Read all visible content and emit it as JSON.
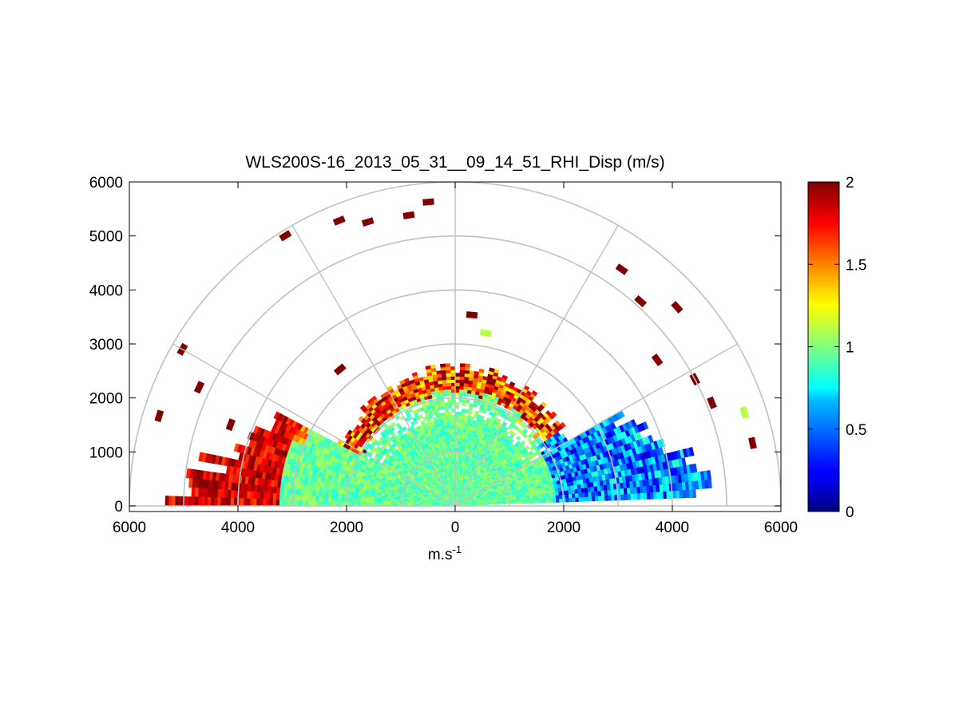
{
  "chart_data": {
    "type": "heatmap",
    "subtype": "polar RHI scan (half-disk)",
    "title": "WLS200S-16_2013_05_31__09_14_51_RHI_Disp (m/s)",
    "xlabel": "m.s",
    "xlabel_superscript": "-1",
    "ylabel": "",
    "xlim": [
      -6000,
      6000
    ],
    "ylim": [
      0,
      6000
    ],
    "x_ticks": [
      -6000,
      -4000,
      -2000,
      0,
      2000,
      4000,
      6000
    ],
    "x_tick_labels": [
      "6000",
      "4000",
      "2000",
      "0",
      "2000",
      "4000",
      "6000"
    ],
    "y_ticks": [
      0,
      1000,
      2000,
      3000,
      4000,
      5000,
      6000
    ],
    "y_tick_labels": [
      "0",
      "1000",
      "2000",
      "3000",
      "4000",
      "5000",
      "6000"
    ],
    "polar_grid": {
      "range_rings_m": [
        1000,
        2000,
        3000,
        4000,
        5000,
        6000
      ],
      "spoke_angles_deg": [
        0,
        30,
        60,
        90,
        120,
        150,
        180
      ]
    },
    "colorbar": {
      "colormap": "jet",
      "min": 0,
      "max": 2,
      "ticks": [
        0,
        0.5,
        1,
        1.5,
        2
      ],
      "tick_labels": [
        "0",
        "0.5",
        "1",
        "1.5",
        "2"
      ]
    },
    "data_extent": {
      "elevation_range_deg": [
        2,
        178
      ],
      "max_dense_range_m": 2500,
      "typical_value": 1.0,
      "high_values_edge": "left and outer fringe (~2)",
      "low_values_region": "right side, 2000-4500 m range (~0.2-0.5)"
    },
    "grid": true,
    "legend": "none (colorbar at right)"
  },
  "colors": {
    "grid": "#c0c0c0",
    "axes": "#000000"
  }
}
